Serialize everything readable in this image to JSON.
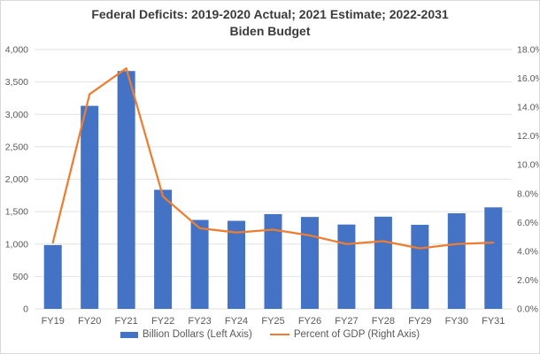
{
  "chart_data": {
    "type": "combo",
    "title_lines": [
      "Federal Deficits: 2019-2020 Actual; 2021 Estimate; 2022-2031",
      "Biden Budget"
    ],
    "categories": [
      "FY19",
      "FY20",
      "FY21",
      "FY22",
      "FY23",
      "FY24",
      "FY25",
      "FY26",
      "FY27",
      "FY28",
      "FY29",
      "FY30",
      "FY31"
    ],
    "series": [
      {
        "name": "Billion Dollars (Left Axis)",
        "type": "bar",
        "axis": "left",
        "color": "#4472C4",
        "values": [
          984,
          3132,
          3669,
          1837,
          1372,
          1358,
          1462,
          1418,
          1301,
          1422,
          1297,
          1475,
          1566
        ]
      },
      {
        "name": "Percent of GDP (Right Axis)",
        "type": "line",
        "axis": "right",
        "color": "#ED7D31",
        "values": [
          4.6,
          14.9,
          16.7,
          7.8,
          5.6,
          5.3,
          5.5,
          5.1,
          4.5,
          4.7,
          4.2,
          4.5,
          4.6
        ]
      }
    ],
    "left_axis": {
      "min": 0,
      "max": 4000,
      "step": 500,
      "tick_labels": [
        "0",
        "500",
        "1,000",
        "1,500",
        "2,000",
        "2,500",
        "3,000",
        "3,500",
        "4,000"
      ]
    },
    "right_axis": {
      "min": 0,
      "max": 18,
      "step": 2,
      "tick_labels": [
        "0.0%",
        "2.0%",
        "4.0%",
        "6.0%",
        "8.0%",
        "10.0%",
        "12.0%",
        "14.0%",
        "16.0%",
        "18.0%"
      ]
    },
    "grid": true,
    "grid_color": "#E2E2E2",
    "text_color": "#595959",
    "title_color": "#3b3b3b",
    "legend_position": "bottom"
  }
}
